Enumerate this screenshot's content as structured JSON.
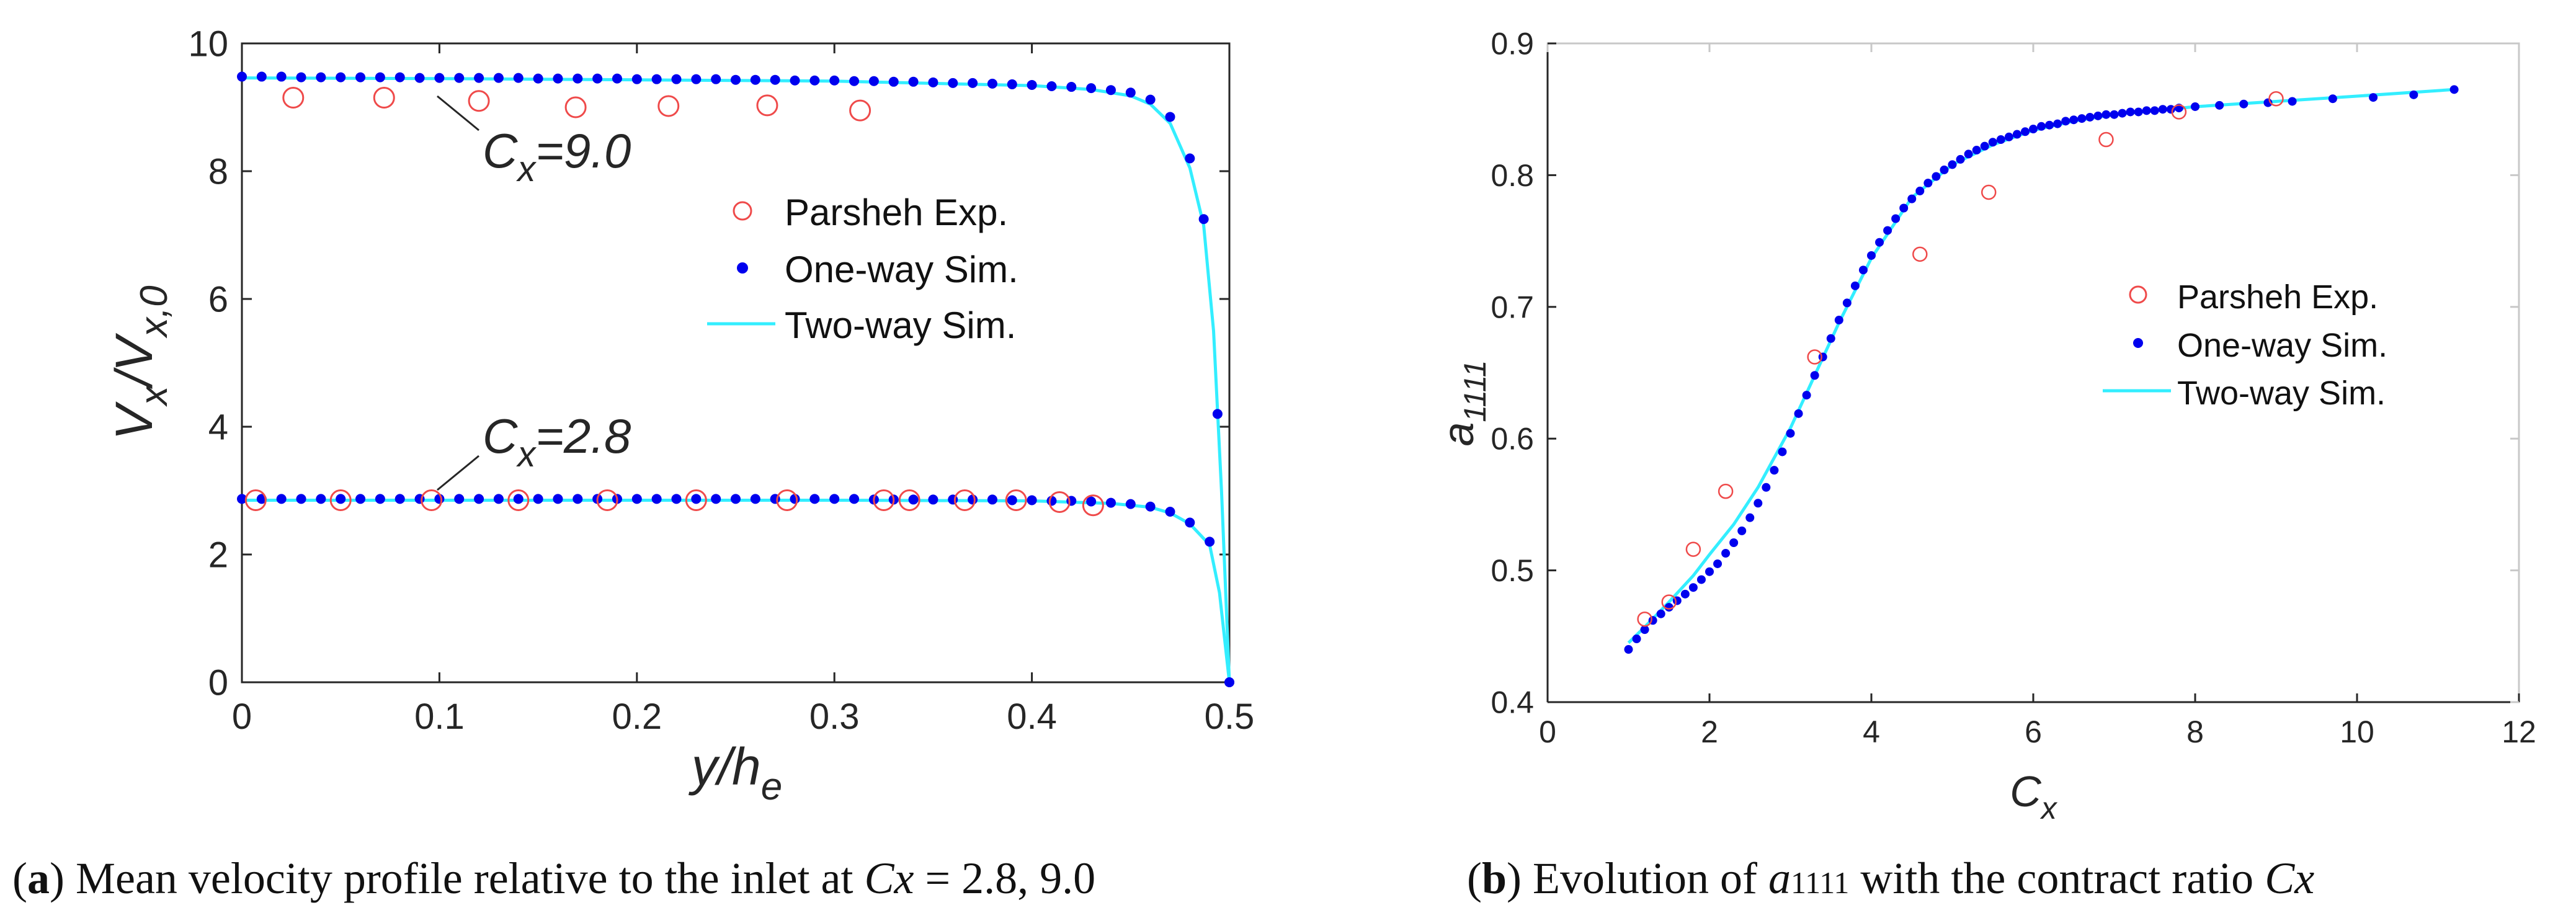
{
  "charts": {
    "a": {
      "xlabel_main": "y/h",
      "xlabel_sub": "e",
      "ylabel_main": "V",
      "ylabel_sub1": "x",
      "ylabel_mid": "/V",
      "ylabel_sub2": "x,0",
      "annotations": [
        {
          "prefix": "C",
          "sub": "x",
          "suffix": "=9.0"
        },
        {
          "prefix": "C",
          "sub": "x",
          "suffix": "=2.8"
        }
      ]
    },
    "b": {
      "xlabel_main": "C",
      "xlabel_sub": "x",
      "ylabel_main": "a",
      "ylabel_sub": "1111"
    }
  },
  "legend": {
    "exp": "Parsheh Exp.",
    "one": "One-way Sim.",
    "two": "Two-way Sim."
  },
  "captions": {
    "a": {
      "bold": "a",
      "text": ") Mean velocity profile relative to the inlet at ",
      "italic": "Cx",
      "text2": " = 2.8, 9.0"
    },
    "b": {
      "bold": "b",
      "text": ") Evolution of ",
      "italic": "a",
      "sub": "1111",
      "text2": " with the contract ratio ",
      "italic2": "Cx"
    }
  },
  "colors": {
    "exp": "#ef4a4a",
    "one": "#0000ee",
    "two": "#33eeff",
    "axis": "#262626",
    "frame": "#c8c8c8"
  },
  "chart_data": [
    {
      "type": "scatter",
      "xlim": [
        0,
        0.5
      ],
      "ylim": [
        0,
        10
      ],
      "xticks": [
        0,
        0.1,
        0.2,
        0.3,
        0.4,
        0.5
      ],
      "xtick_labels": [
        "0",
        "0.1",
        "0.2",
        "0.3",
        "0.4",
        "0.5"
      ],
      "yticks": [
        0,
        2,
        4,
        6,
        8,
        10
      ],
      "ytick_labels": [
        "0",
        "2",
        "4",
        "6",
        "8",
        "10"
      ],
      "legend_position": "right",
      "series": [
        {
          "name": "Parsheh Exp.",
          "group": "Cx=9.0",
          "marker": "open-circle",
          "x": [
            0.026,
            0.072,
            0.12,
            0.169,
            0.216,
            0.266,
            0.313
          ],
          "y": [
            9.15,
            9.15,
            9.1,
            9.0,
            9.02,
            9.03,
            8.95
          ]
        },
        {
          "name": "Parsheh Exp.",
          "group": "Cx=2.8",
          "marker": "open-circle",
          "x": [
            0.007,
            0.05,
            0.096,
            0.14,
            0.185,
            0.23,
            0.276,
            0.325,
            0.338,
            0.366,
            0.392,
            0.414,
            0.431
          ],
          "y": [
            2.85,
            2.85,
            2.85,
            2.85,
            2.85,
            2.85,
            2.85,
            2.85,
            2.85,
            2.85,
            2.85,
            2.82,
            2.77
          ]
        },
        {
          "name": "One-way Sim.",
          "group": "Cx=9.0",
          "marker": "dot",
          "x": [
            0.0,
            0.01,
            0.02,
            0.03,
            0.04,
            0.05,
            0.06,
            0.07,
            0.08,
            0.09,
            0.1,
            0.11,
            0.12,
            0.13,
            0.14,
            0.15,
            0.16,
            0.17,
            0.18,
            0.19,
            0.2,
            0.21,
            0.22,
            0.23,
            0.24,
            0.25,
            0.26,
            0.27,
            0.28,
            0.29,
            0.3,
            0.31,
            0.32,
            0.33,
            0.34,
            0.35,
            0.36,
            0.37,
            0.38,
            0.39,
            0.4,
            0.41,
            0.42,
            0.43,
            0.44,
            0.45,
            0.46,
            0.47,
            0.48,
            0.487,
            0.494,
            0.5
          ],
          "y": [
            9.48,
            9.48,
            9.48,
            9.47,
            9.47,
            9.47,
            9.47,
            9.47,
            9.47,
            9.46,
            9.46,
            9.46,
            9.46,
            9.46,
            9.46,
            9.45,
            9.45,
            9.45,
            9.45,
            9.45,
            9.44,
            9.44,
            9.44,
            9.44,
            9.44,
            9.43,
            9.43,
            9.43,
            9.42,
            9.42,
            9.42,
            9.41,
            9.41,
            9.4,
            9.4,
            9.39,
            9.38,
            9.38,
            9.37,
            9.36,
            9.35,
            9.33,
            9.32,
            9.3,
            9.27,
            9.23,
            9.12,
            8.85,
            8.2,
            7.25,
            4.2,
            0.0
          ]
        },
        {
          "name": "One-way Sim.",
          "group": "Cx=2.8",
          "marker": "dot",
          "x": [
            0.0,
            0.01,
            0.02,
            0.03,
            0.04,
            0.05,
            0.06,
            0.07,
            0.08,
            0.09,
            0.1,
            0.11,
            0.12,
            0.13,
            0.14,
            0.15,
            0.16,
            0.17,
            0.18,
            0.19,
            0.2,
            0.21,
            0.22,
            0.23,
            0.24,
            0.25,
            0.26,
            0.27,
            0.28,
            0.29,
            0.3,
            0.31,
            0.32,
            0.33,
            0.34,
            0.35,
            0.36,
            0.37,
            0.38,
            0.39,
            0.4,
            0.41,
            0.42,
            0.43,
            0.44,
            0.45,
            0.46,
            0.47,
            0.48,
            0.49,
            0.5
          ],
          "y": [
            2.87,
            2.87,
            2.87,
            2.87,
            2.87,
            2.87,
            2.87,
            2.87,
            2.87,
            2.87,
            2.87,
            2.87,
            2.87,
            2.87,
            2.87,
            2.87,
            2.87,
            2.87,
            2.87,
            2.87,
            2.87,
            2.87,
            2.87,
            2.87,
            2.87,
            2.87,
            2.87,
            2.87,
            2.87,
            2.87,
            2.87,
            2.87,
            2.86,
            2.86,
            2.86,
            2.86,
            2.86,
            2.86,
            2.86,
            2.85,
            2.85,
            2.84,
            2.84,
            2.83,
            2.81,
            2.79,
            2.75,
            2.67,
            2.5,
            2.2,
            0.0
          ]
        },
        {
          "name": "Two-way Sim.",
          "group": "Cx=9.0",
          "marker": "line",
          "x": [
            0.0,
            0.1,
            0.2,
            0.3,
            0.4,
            0.43,
            0.45,
            0.46,
            0.47,
            0.48,
            0.487,
            0.492,
            0.496,
            0.5
          ],
          "y": [
            9.46,
            9.45,
            9.43,
            9.41,
            9.34,
            9.28,
            9.18,
            9.05,
            8.75,
            8.05,
            7.15,
            5.5,
            3.0,
            0.0
          ]
        },
        {
          "name": "Two-way Sim.",
          "group": "Cx=2.8",
          "marker": "line",
          "x": [
            0.0,
            0.1,
            0.2,
            0.3,
            0.4,
            0.44,
            0.46,
            0.47,
            0.48,
            0.49,
            0.495,
            0.5
          ],
          "y": [
            2.85,
            2.85,
            2.85,
            2.85,
            2.84,
            2.8,
            2.74,
            2.65,
            2.48,
            2.15,
            1.4,
            0.0
          ]
        }
      ]
    },
    {
      "type": "scatter",
      "xlim": [
        0,
        12
      ],
      "ylim": [
        0.4,
        0.9
      ],
      "xticks": [
        0,
        2,
        4,
        6,
        8,
        10,
        12
      ],
      "xtick_labels": [
        "0",
        "2",
        "4",
        "6",
        "8",
        "10",
        "12"
      ],
      "yticks": [
        0.4,
        0.5,
        0.6,
        0.7,
        0.8,
        0.9
      ],
      "ytick_labels": [
        "0.4",
        "0.5",
        "0.6",
        "0.7",
        "0.8",
        "0.9"
      ],
      "legend_position": "right",
      "series": [
        {
          "name": "Parsheh Exp.",
          "marker": "open-circle",
          "x": [
            1.2,
            1.5,
            1.8,
            2.2,
            3.3,
            4.6,
            5.45,
            6.9,
            7.8,
            9.0
          ],
          "y": [
            0.463,
            0.476,
            0.516,
            0.56,
            0.662,
            0.74,
            0.787,
            0.827,
            0.848,
            0.858
          ]
        },
        {
          "name": "One-way Sim.",
          "marker": "dot",
          "x": [
            1.0,
            1.1,
            1.2,
            1.3,
            1.4,
            1.5,
            1.6,
            1.7,
            1.8,
            1.9,
            2.0,
            2.1,
            2.2,
            2.3,
            2.4,
            2.5,
            2.6,
            2.7,
            2.8,
            2.9,
            3.0,
            3.1,
            3.2,
            3.3,
            3.4,
            3.5,
            3.6,
            3.7,
            3.8,
            3.9,
            4.0,
            4.1,
            4.2,
            4.3,
            4.4,
            4.5,
            4.6,
            4.7,
            4.8,
            4.9,
            5.0,
            5.1,
            5.2,
            5.3,
            5.4,
            5.5,
            5.6,
            5.7,
            5.8,
            5.9,
            6.0,
            6.1,
            6.2,
            6.3,
            6.4,
            6.5,
            6.6,
            6.7,
            6.8,
            6.9,
            7.0,
            7.1,
            7.2,
            7.3,
            7.4,
            7.5,
            7.6,
            7.7,
            7.8,
            8.0,
            8.3,
            8.6,
            8.9,
            9.2,
            9.7,
            10.2,
            10.7,
            11.2
          ],
          "y": [
            0.44,
            0.448,
            0.455,
            0.462,
            0.467,
            0.472,
            0.477,
            0.482,
            0.487,
            0.493,
            0.499,
            0.505,
            0.513,
            0.521,
            0.53,
            0.54,
            0.551,
            0.563,
            0.576,
            0.59,
            0.604,
            0.619,
            0.633,
            0.648,
            0.662,
            0.676,
            0.69,
            0.703,
            0.716,
            0.728,
            0.739,
            0.749,
            0.758,
            0.767,
            0.775,
            0.782,
            0.788,
            0.794,
            0.799,
            0.804,
            0.808,
            0.812,
            0.816,
            0.819,
            0.822,
            0.825,
            0.827,
            0.829,
            0.831,
            0.833,
            0.835,
            0.837,
            0.838,
            0.839,
            0.841,
            0.842,
            0.843,
            0.844,
            0.845,
            0.846,
            0.846,
            0.847,
            0.848,
            0.848,
            0.849,
            0.849,
            0.85,
            0.85,
            0.851,
            0.852,
            0.853,
            0.854,
            0.855,
            0.856,
            0.858,
            0.859,
            0.861,
            0.865
          ]
        },
        {
          "name": "Two-way Sim.",
          "marker": "line",
          "x": [
            1.0,
            1.2,
            1.5,
            1.8,
            2.0,
            2.3,
            2.6,
            3.0,
            3.3,
            3.6,
            4.0,
            4.5,
            5.0,
            5.5,
            6.0,
            6.5,
            7.0,
            8.0,
            9.0,
            10.0,
            11.2
          ],
          "y": [
            0.445,
            0.457,
            0.476,
            0.496,
            0.512,
            0.535,
            0.563,
            0.608,
            0.648,
            0.688,
            0.737,
            0.783,
            0.808,
            0.823,
            0.834,
            0.841,
            0.846,
            0.852,
            0.856,
            0.86,
            0.865
          ]
        }
      ]
    }
  ]
}
